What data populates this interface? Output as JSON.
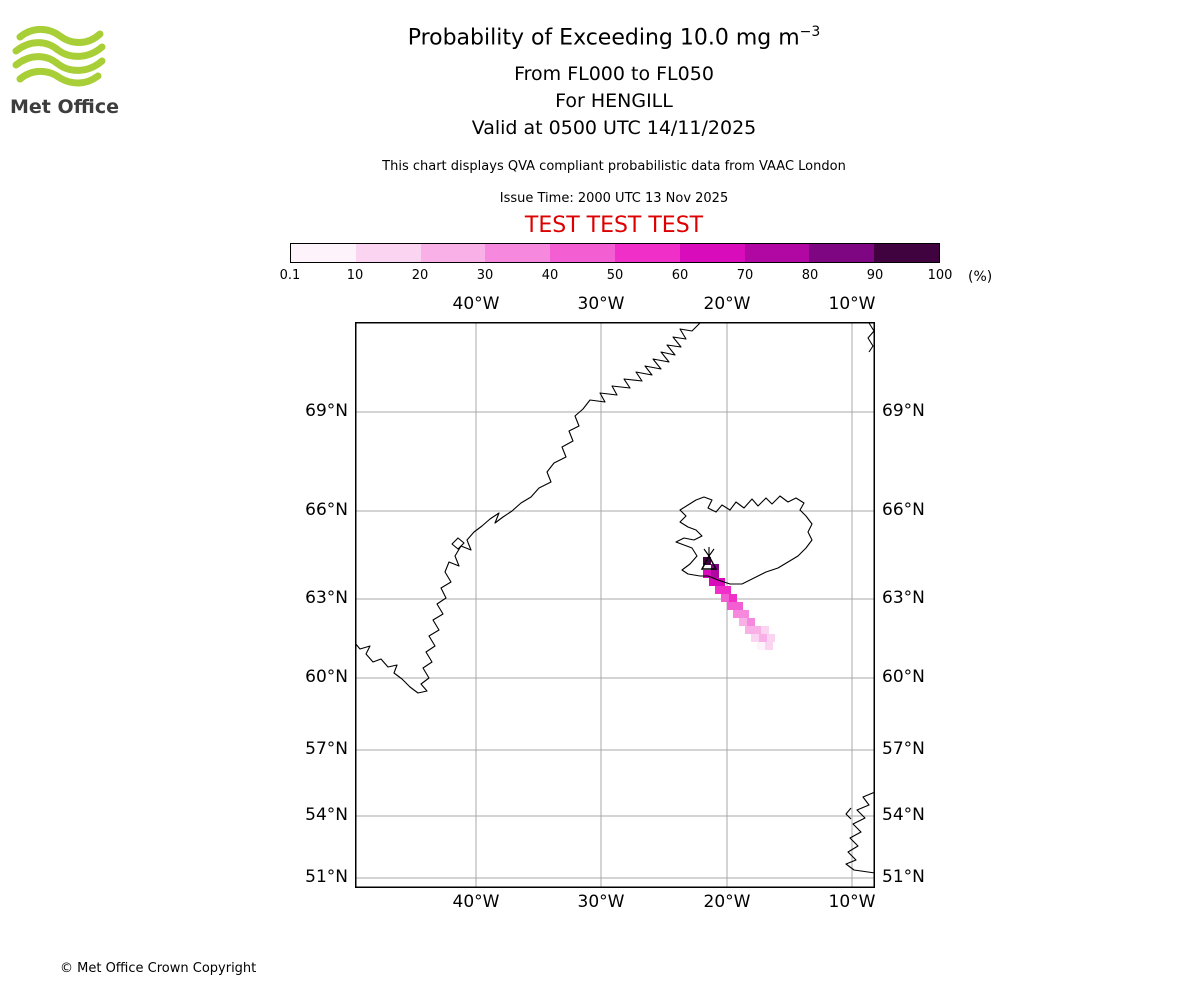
{
  "header": {
    "title_main": "Probability of Exceeding 10.0 mg m",
    "title_sup": "−3",
    "subtitle_fl": "From FL000 to FL050",
    "subtitle_volcano": "For HENGILL",
    "subtitle_valid": "Valid at 0500 UTC 14/11/2025",
    "qva_note": "This chart displays QVA compliant probabilistic data from VAAC London",
    "issue_time": "Issue Time: 2000 UTC 13 Nov 2025",
    "test_banner": "TEST TEST TEST"
  },
  "logo": {
    "brand": "Met Office"
  },
  "colorbar": {
    "tick_labels": [
      "0.1",
      "10",
      "20",
      "30",
      "40",
      "50",
      "60",
      "70",
      "80",
      "90",
      "100"
    ],
    "unit": "(%)",
    "colors": [
      "#fdf3fb",
      "#fad4f0",
      "#f8b0e7",
      "#f689de",
      "#f45ed3",
      "#ef2fc8",
      "#d90cbb",
      "#b208a3",
      "#7f0682",
      "#41033f"
    ]
  },
  "map": {
    "lon_labels": [
      "40°W",
      "30°W",
      "20°W",
      "10°W"
    ],
    "lat_labels": [
      "69°N",
      "66°N",
      "63°N",
      "60°N",
      "57°N",
      "54°N",
      "51°N"
    ]
  },
  "footer": {
    "copyright": "© Met Office Crown Copyright"
  },
  "chart_data": {
    "type": "heatmap",
    "title": "Probability of Exceeding 10.0 mg m−3, FL000 to FL050, HENGILL, valid 0500 UTC 14/11/2025",
    "colorbar_levels_percent": [
      0.1,
      10,
      20,
      30,
      40,
      50,
      60,
      70,
      80,
      90,
      100
    ],
    "colorbar_unit": "%",
    "projection": "mercator",
    "map_extent_estimate": {
      "lon_west_deg_w": 49.6,
      "lon_east_deg_w": 8.2,
      "lat_south_deg_n": 50.7,
      "lat_north_deg_n": 70.3
    },
    "grid_lons_deg_w": [
      40,
      30,
      20,
      10
    ],
    "grid_lats_deg_n": [
      51,
      54,
      57,
      60,
      63,
      66,
      69
    ],
    "volcano": {
      "name": "HENGILL",
      "approx_lat_deg_n": 64.1,
      "approx_lon_deg_w": 21.3
    },
    "plume": {
      "description": "Probability plume extends SE from Hengill (SW Iceland); highest probability (90-100%) at source, decreasing to <10% near 61.8N 17W",
      "cell_size_px": 8,
      "cells_x_y_levelindex": [
        [
          703,
          557,
          9
        ],
        [
          711,
          564,
          8
        ],
        [
          703,
          570,
          6
        ],
        [
          711,
          570,
          7
        ],
        [
          709,
          578,
          6
        ],
        [
          717,
          578,
          6
        ],
        [
          715,
          586,
          5
        ],
        [
          723,
          586,
          5
        ],
        [
          721,
          594,
          4
        ],
        [
          729,
          594,
          5
        ],
        [
          727,
          602,
          4
        ],
        [
          735,
          602,
          4
        ],
        [
          733,
          610,
          3
        ],
        [
          741,
          610,
          3
        ],
        [
          739,
          618,
          2
        ],
        [
          747,
          618,
          3
        ],
        [
          745,
          626,
          2
        ],
        [
          753,
          626,
          2
        ],
        [
          761,
          626,
          1
        ],
        [
          751,
          634,
          1
        ],
        [
          759,
          634,
          2
        ],
        [
          767,
          634,
          1
        ],
        [
          757,
          642,
          0
        ],
        [
          765,
          642,
          1
        ]
      ]
    }
  }
}
